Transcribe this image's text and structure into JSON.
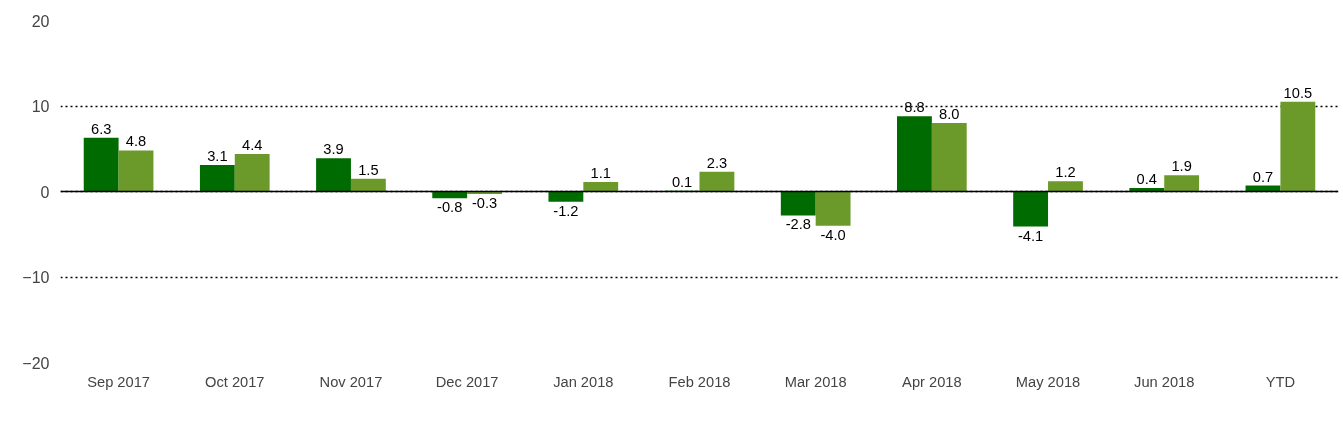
{
  "chart_data": {
    "type": "bar",
    "categories": [
      "Sep 2017",
      "Oct 2017",
      "Nov 2017",
      "Dec 2017",
      "Jan 2018",
      "Feb 2018",
      "Mar 2018",
      "Apr 2018",
      "May 2018",
      "Jun 2018",
      "YTD"
    ],
    "series": [
      {
        "color": "#006b00",
        "values": [
          6.3,
          3.1,
          3.9,
          -0.8,
          -1.2,
          0.1,
          -2.8,
          8.8,
          -4.1,
          0.4,
          0.7
        ],
        "value_labels": [
          "6.3",
          "3.1",
          "3.9",
          "-0.8",
          "-1.2",
          "0.1",
          "-2.8",
          "8.8",
          "-4.1",
          "0.4",
          "0.7"
        ]
      },
      {
        "color": "#6b9a2b",
        "values": [
          4.8,
          4.4,
          1.5,
          -0.3,
          1.1,
          2.3,
          -4.0,
          8.0,
          1.2,
          1.9,
          10.5
        ],
        "value_labels": [
          "4.8",
          "4.4",
          "1.5",
          "-0.3",
          "1.1",
          "2.3",
          "-4.0",
          "8.0",
          "1.2",
          "1.9",
          "10.5"
        ]
      }
    ],
    "ylim": [
      -20,
      20
    ],
    "yticks": [
      -20,
      -10,
      0,
      10,
      20
    ],
    "grid": "y"
  }
}
